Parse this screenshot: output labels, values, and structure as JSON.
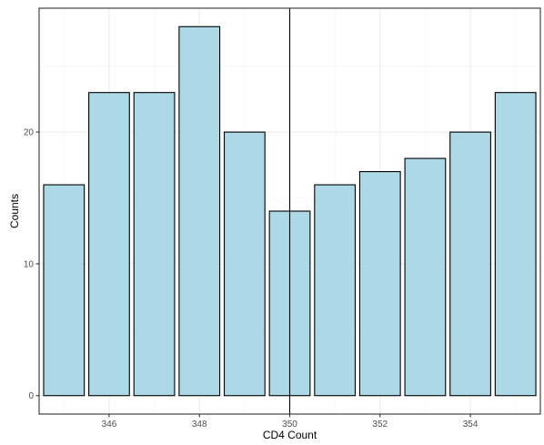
{
  "chart_data": {
    "type": "bar",
    "x": [
      345,
      346,
      347,
      348,
      349,
      350,
      351,
      352,
      353,
      354,
      355
    ],
    "values": [
      16,
      23,
      23,
      28,
      20,
      14,
      16,
      17,
      18,
      20,
      23
    ],
    "xlabel": "CD4 Count",
    "ylabel": "Counts",
    "xlim": [
      344.45,
      355.55
    ],
    "ylim": [
      -1.4,
      29.4
    ],
    "x_ticks": [
      346,
      348,
      350,
      352,
      354
    ],
    "y_ticks": [
      0,
      10,
      20
    ],
    "vline": 350,
    "grid": true,
    "legend": "none",
    "colors": {
      "bar_fill": "#add8e6",
      "bar_stroke": "#000000",
      "grid_major": "#ebebeb",
      "grid_minor": "#f5f5f5",
      "panel_border": "#333333",
      "vline": "#000000"
    }
  }
}
